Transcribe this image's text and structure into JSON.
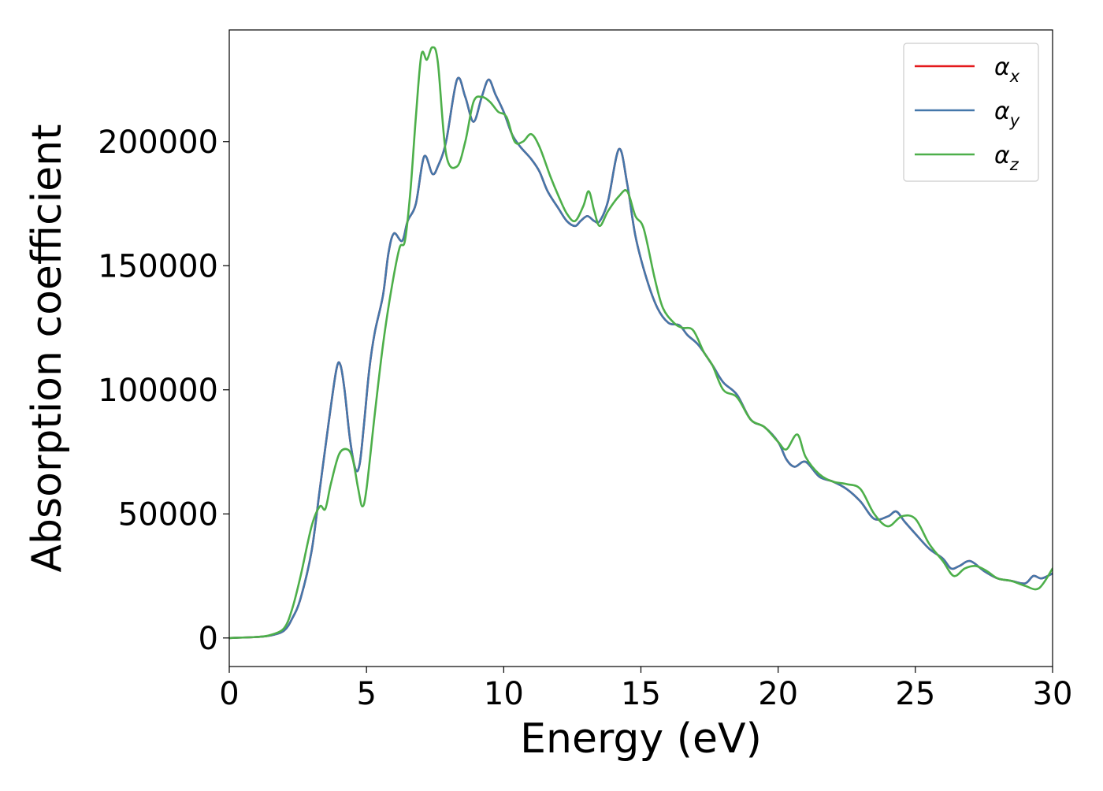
{
  "chart_data": {
    "type": "line",
    "xlabel": "Energy (eV)",
    "ylabel": "Absorption coefficient",
    "xlim": [
      0,
      30
    ],
    "ylim": [
      -11500,
      245000
    ],
    "xticks": [
      0,
      5,
      10,
      15,
      20,
      25,
      30
    ],
    "xtick_labels": [
      "0",
      "5",
      "10",
      "15",
      "20",
      "25",
      "30"
    ],
    "yticks": [
      0,
      50000,
      100000,
      150000,
      200000
    ],
    "ytick_labels": [
      "0",
      "50000",
      "100000",
      "150000",
      "200000"
    ],
    "grid": false,
    "legend_position": "top-right",
    "series": [
      {
        "name": "α_x",
        "legend_symbol": "α",
        "legend_subscript": "x",
        "color": "#e41a1c",
        "x": [
          0,
          1,
          1.5,
          2,
          2.3,
          2.6,
          3,
          3.3,
          3.6,
          3.9,
          4.05,
          4.2,
          4.4,
          4.6,
          4.75,
          4.9,
          5.1,
          5.3,
          5.6,
          5.8,
          6.0,
          6.3,
          6.5,
          6.8,
          7.1,
          7.4,
          7.6,
          7.9,
          8.3,
          8.6,
          8.9,
          9.2,
          9.45,
          9.7,
          10,
          10.3,
          10.6,
          11,
          11.3,
          11.6,
          12,
          12.3,
          12.6,
          12.8,
          13.05,
          13.3,
          13.5,
          13.8,
          14.2,
          14.5,
          14.8,
          15.2,
          15.6,
          16,
          16.4,
          16.7,
          17.1,
          17.6,
          18.0,
          18.5,
          19.0,
          19.5,
          20.0,
          20.3,
          20.6,
          21.0,
          21.5,
          22.0,
          22.5,
          23.0,
          23.5,
          24.0,
          24.3,
          24.6,
          25.0,
          25.5,
          26.0,
          26.3,
          26.6,
          27.0,
          27.5,
          28.0,
          28.5,
          29.0,
          29.3,
          29.6,
          30
        ],
        "y": [
          0,
          400,
          1000,
          3000,
          8000,
          16000,
          35000,
          60000,
          85000,
          108000,
          110000,
          100000,
          80000,
          68000,
          70000,
          85000,
          108000,
          123000,
          138000,
          155000,
          163000,
          160000,
          168000,
          175000,
          194000,
          187000,
          190000,
          200000,
          225000,
          218000,
          208000,
          218000,
          225000,
          219000,
          212000,
          203000,
          198000,
          193000,
          188000,
          180000,
          173000,
          168000,
          166000,
          168000,
          170000,
          168000,
          168000,
          176000,
          197000,
          183000,
          162000,
          145000,
          133000,
          127000,
          126000,
          122000,
          118000,
          110000,
          103000,
          98000,
          88000,
          85000,
          79000,
          72000,
          69000,
          71000,
          65000,
          63000,
          60000,
          55000,
          48000,
          49000,
          51000,
          47000,
          42000,
          36000,
          32000,
          28000,
          29000,
          31000,
          27000,
          24000,
          23000,
          22000,
          25000,
          24000,
          26000
        ]
      },
      {
        "name": "α_y",
        "legend_symbol": "α",
        "legend_subscript": "y",
        "color": "#4477aa",
        "x": [
          0,
          1,
          1.5,
          2,
          2.3,
          2.6,
          3,
          3.3,
          3.6,
          3.9,
          4.05,
          4.2,
          4.4,
          4.6,
          4.75,
          4.9,
          5.1,
          5.3,
          5.6,
          5.8,
          6.0,
          6.3,
          6.5,
          6.8,
          7.1,
          7.4,
          7.6,
          7.9,
          8.3,
          8.6,
          8.9,
          9.2,
          9.45,
          9.7,
          10,
          10.3,
          10.6,
          11,
          11.3,
          11.6,
          12,
          12.3,
          12.6,
          12.8,
          13.05,
          13.3,
          13.5,
          13.8,
          14.2,
          14.5,
          14.8,
          15.2,
          15.6,
          16,
          16.4,
          16.7,
          17.1,
          17.6,
          18.0,
          18.5,
          19.0,
          19.5,
          20.0,
          20.3,
          20.6,
          21.0,
          21.5,
          22.0,
          22.5,
          23.0,
          23.5,
          24.0,
          24.3,
          24.6,
          25.0,
          25.5,
          26.0,
          26.3,
          26.6,
          27.0,
          27.5,
          28.0,
          28.5,
          29.0,
          29.3,
          29.6,
          30
        ],
        "y": [
          0,
          400,
          1000,
          3000,
          8000,
          16000,
          35000,
          60000,
          85000,
          108000,
          110000,
          100000,
          80000,
          68000,
          70000,
          85000,
          108000,
          123000,
          138000,
          155000,
          163000,
          160000,
          168000,
          175000,
          194000,
          187000,
          190000,
          200000,
          225000,
          218000,
          208000,
          218000,
          225000,
          219000,
          212000,
          203000,
          198000,
          193000,
          188000,
          180000,
          173000,
          168000,
          166000,
          168000,
          170000,
          168000,
          168000,
          176000,
          197000,
          183000,
          162000,
          145000,
          133000,
          127000,
          126000,
          122000,
          118000,
          110000,
          103000,
          98000,
          88000,
          85000,
          79000,
          72000,
          69000,
          71000,
          65000,
          63000,
          60000,
          55000,
          48000,
          49000,
          51000,
          47000,
          42000,
          36000,
          32000,
          28000,
          29000,
          31000,
          27000,
          24000,
          23000,
          22000,
          25000,
          24000,
          26000
        ]
      },
      {
        "name": "α_z",
        "legend_symbol": "α",
        "legend_subscript": "z",
        "color": "#4daf4a",
        "x": [
          0,
          1,
          1.5,
          2,
          2.3,
          2.6,
          3,
          3.3,
          3.5,
          3.7,
          4.0,
          4.3,
          4.5,
          4.7,
          4.85,
          5.0,
          5.3,
          5.6,
          5.9,
          6.2,
          6.4,
          6.6,
          6.8,
          7.0,
          7.2,
          7.4,
          7.6,
          7.9,
          8.3,
          8.6,
          8.9,
          9.2,
          9.5,
          9.8,
          10.1,
          10.4,
          10.7,
          11.0,
          11.3,
          11.7,
          12.0,
          12.3,
          12.6,
          12.9,
          13.1,
          13.3,
          13.5,
          13.8,
          14.2,
          14.5,
          14.8,
          15.1,
          15.5,
          15.8,
          16.2,
          16.5,
          16.9,
          17.3,
          17.6,
          18.0,
          18.5,
          19.0,
          19.5,
          20.0,
          20.3,
          20.7,
          21.0,
          21.5,
          22.0,
          22.5,
          23.0,
          23.5,
          24.0,
          24.5,
          25.0,
          25.5,
          26.0,
          26.4,
          26.8,
          27.2,
          27.6,
          28.0,
          28.5,
          29.0,
          29.5,
          30
        ],
        "y": [
          0,
          400,
          1200,
          4000,
          12000,
          25000,
          45000,
          53000,
          52000,
          62000,
          74000,
          76000,
          72000,
          60000,
          53000,
          60000,
          90000,
          118000,
          140000,
          157000,
          160000,
          180000,
          210000,
          235000,
          233000,
          238000,
          232000,
          195000,
          190000,
          200000,
          216000,
          218000,
          216000,
          212000,
          210000,
          200000,
          200000,
          203000,
          198000,
          186000,
          178000,
          171000,
          168000,
          174000,
          180000,
          172000,
          166000,
          172000,
          178000,
          180000,
          170000,
          165000,
          145000,
          133000,
          127000,
          125000,
          124000,
          115000,
          110000,
          100000,
          97000,
          88000,
          85000,
          79000,
          76000,
          82000,
          73000,
          66000,
          63000,
          62000,
          60000,
          50000,
          45000,
          49000,
          48000,
          38000,
          31000,
          25000,
          28000,
          29000,
          27000,
          24000,
          23000,
          21000,
          20000,
          28000
        ]
      }
    ]
  }
}
